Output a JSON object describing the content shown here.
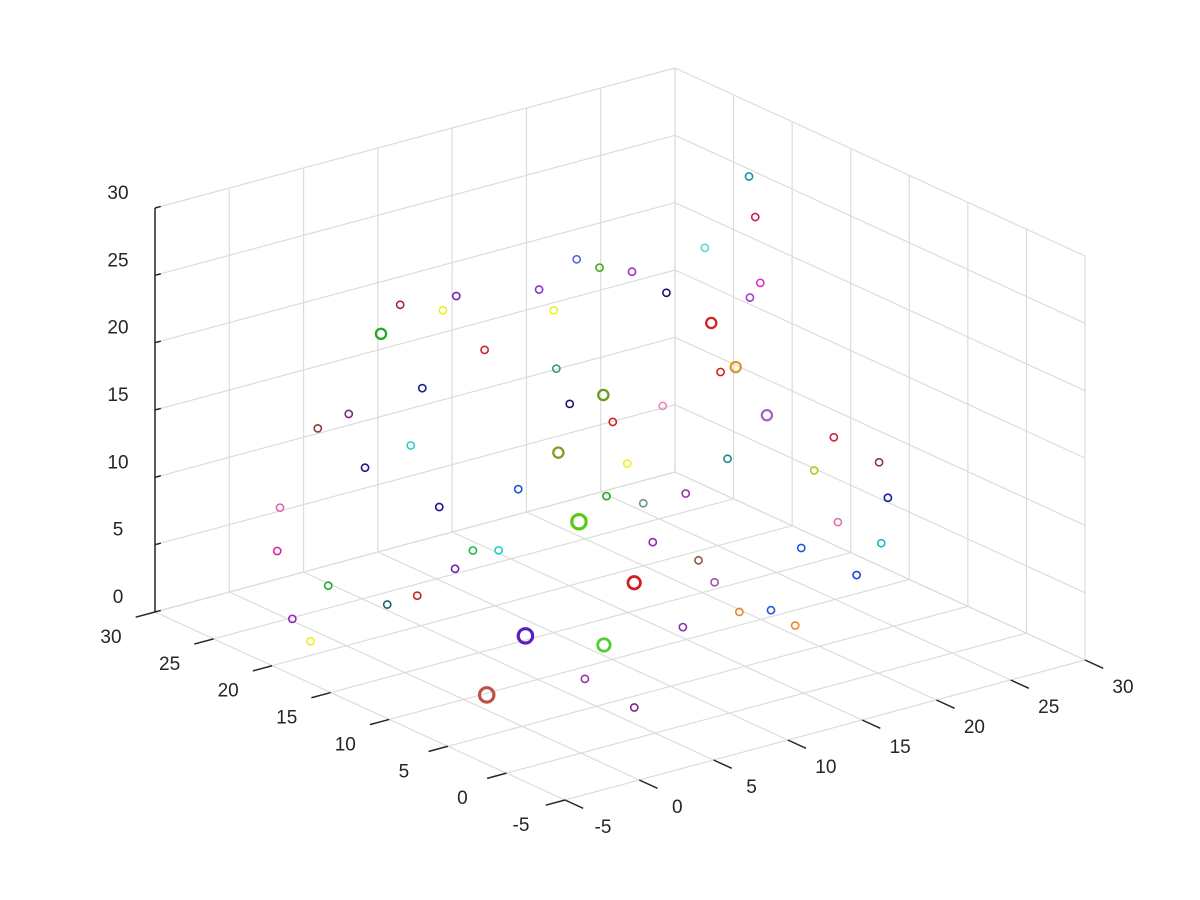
{
  "chart_data": {
    "type": "scatter3d",
    "xlim": [
      -5,
      30
    ],
    "ylim": [
      -5,
      30
    ],
    "zlim": [
      0,
      30
    ],
    "xticks": [
      -5,
      0,
      5,
      10,
      15,
      20,
      25,
      30
    ],
    "yticks": [
      -5,
      0,
      5,
      10,
      15,
      20,
      25,
      30
    ],
    "zticks": [
      0,
      5,
      10,
      15,
      20,
      25,
      30
    ],
    "grid": true,
    "x": [
      1.4,
      8.5,
      15.1,
      8.5,
      11.8,
      25.6,
      24.6,
      -2.5,
      -0.4,
      0.2,
      5.4,
      21.7,
      22.2,
      20.7,
      4.0,
      5.8,
      13.5,
      17.3,
      20.9,
      -3.6,
      1.8,
      9.6,
      16.2,
      18.3,
      21.3,
      24.6,
      22.9,
      23.6,
      24.2,
      25,
      27.1,
      23.6,
      15.4,
      11.9,
      14.6,
      7.8,
      6.7,
      6.8,
      4.8,
      4.1,
      9.6,
      6.3,
      10.2,
      19.3,
      15.8,
      18.5,
      21,
      16.3,
      19.4,
      11.8,
      5.5,
      -0.2,
      -2.3,
      3.9,
      16.5,
      18.8,
      22.1,
      22.5,
      26.2,
      18.1,
      10.8,
      14.4,
      15.8,
      24.8,
      8.9,
      14.9,
      14.9,
      16.6,
      15.1,
      24.4
    ],
    "y": [
      9.8,
      15.5,
      19.3,
      8.8,
      10.4,
      18.1,
      16.3,
      22.5,
      25.4,
      22.7,
      23.9,
      1.3,
      2.5,
      2.7,
      0.5,
      7.0,
      8.4,
      8.4,
      8.2,
      18.5,
      18.8,
      22.8,
      24.1,
      21.6,
      19.7,
      20.6,
      17.9,
      16.7,
      14.8,
      10.1,
      8.9,
      10,
      17.6,
      17,
      20.6,
      16.9,
      17.7,
      20.7,
      24.5,
      25,
      25.7,
      22.5,
      24.7,
      20.1,
      14.7,
      14.5,
      14.1,
      16.7,
      17.6,
      20.3,
      17.7,
      21.3,
      21.7,
      18.9,
      9.5,
      7.6,
      9.2,
      16.6,
      17.9,
      23.3,
      21.9,
      19.2,
      17.3,
      9.5,
      26.7,
      21.2,
      16.7,
      11,
      13,
      16.5
    ],
    "z": [
      0,
      0,
      5,
      2,
      5,
      28,
      26,
      10,
      5,
      15,
      20,
      12,
      8,
      6,
      2,
      1,
      2,
      2,
      0,
      2,
      3,
      22,
      20,
      22,
      20,
      22,
      18,
      15,
      12,
      12,
      10,
      10,
      15,
      12,
      16,
      6,
      6,
      8,
      10,
      14,
      14,
      12,
      20,
      22,
      8,
      8,
      10,
      10,
      13,
      8,
      5,
      4,
      2,
      3,
      4,
      2,
      5,
      15,
      20,
      22,
      18,
      14,
      13,
      6,
      20,
      20,
      8,
      5,
      6,
      20
    ],
    "sizes": [
      4,
      4,
      4,
      3,
      3,
      1,
      1,
      1,
      1,
      1,
      2,
      1,
      1,
      1,
      1,
      1,
      1,
      1,
      1,
      1,
      1,
      1,
      1,
      1,
      1,
      1,
      2,
      2,
      2,
      1,
      1,
      1,
      2,
      2,
      1,
      1,
      1,
      1,
      1,
      1,
      1,
      1,
      1,
      1,
      1,
      1,
      1,
      1,
      1,
      1,
      1,
      1,
      1,
      1,
      1,
      1,
      1,
      1,
      1,
      1,
      1,
      1,
      1,
      1,
      1,
      1,
      1,
      1,
      1,
      1
    ],
    "colors": [
      "#c0504d",
      "#5a1fc0",
      "#55cc11",
      "#55cc33",
      "#cc2222",
      "#1e90c0",
      "#cc2255",
      "#dd66aa",
      "#dd22aa",
      "#8b3a3a",
      "#22aa22",
      "#1a1aa0",
      "#22bbbb",
      "#2244dd",
      "#7a2a8a",
      "#9933aa",
      "#8833aa",
      "#ee8822",
      "#ee8822",
      "#eeee22",
      "#116666",
      "#7722aa",
      "#8833cc",
      "#44aa22",
      "#221166",
      "#55ddcc",
      "#cc2222",
      "#dd9922",
      "#9966cc",
      "#cc2244",
      "#8b3a3a",
      "#aacc22",
      "#669922",
      "#889922",
      "#339988",
      "#22cccc",
      "#22bb44",
      "#221188",
      "#1a1a88",
      "#7a2a7a",
      "#1a2288",
      "#33cccc",
      "#eeee22",
      "#9933cc",
      "#669988",
      "#9933aa",
      "#228888",
      "#eeee22",
      "#ee88bb",
      "#2255dd",
      "#7722aa",
      "#22aa33",
      "#9922bb",
      "#cc2222",
      "#9955aa",
      "#2255dd",
      "#2255dd",
      "#cc2222",
      "#dd33cc",
      "#5566dd",
      "#cc2233",
      "#1a1a66",
      "#cc2222",
      "#dd77aa",
      "#aa2244",
      "#eeee33",
      "#22aa22",
      "#8b5a3a",
      "#9922bb",
      "#9944cc"
    ]
  }
}
